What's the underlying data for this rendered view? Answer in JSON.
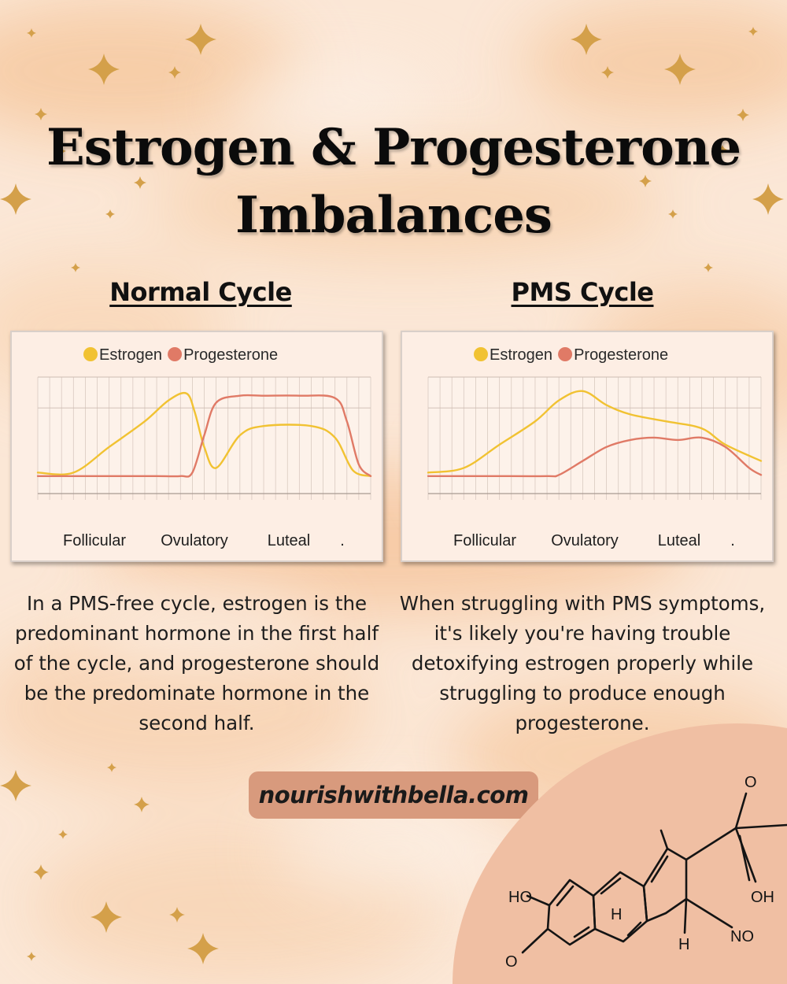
{
  "title_line1": "Estrogen & Progesterone",
  "title_line2": "Imbalances",
  "colors": {
    "background": "#fbe7d6",
    "estrogen": "#f1c232",
    "progesterone": "#e07a66",
    "sparkle": "#d4a04a",
    "accent_blob": "#f0bfa3",
    "site_badge": "#d89a7d"
  },
  "normal": {
    "heading": "Normal Cycle",
    "description": "In a PMS-free cycle, estrogen is the predominant hormone in the first half of the cycle, and progesterone should be the predominate hormone in the second half."
  },
  "pms": {
    "heading": "PMS Cycle",
    "description": "When struggling with PMS symptoms, it's likely you're having trouble detoxifying estrogen properly while struggling to produce enough progesterone."
  },
  "website": "nourishwithbella.com",
  "chemical_labels": [
    "O",
    "OH",
    "HO",
    "H",
    "H",
    "NO",
    "O"
  ],
  "chart_data": [
    {
      "type": "line",
      "legend": [
        "Estrogen",
        "Progesterone"
      ],
      "legend_placement": "top",
      "phase_labels": [
        "Follicular",
        "Ovulatory",
        "Luteal",
        "."
      ],
      "grid": true,
      "xlim": [
        0,
        28
      ],
      "ylim": [
        0,
        100
      ],
      "series": [
        {
          "name": "Estrogen",
          "color": "#f1c232",
          "x": [
            0,
            3,
            6,
            9,
            11,
            12.5,
            13.2,
            14,
            15,
            17,
            19,
            23,
            25,
            26.5,
            28
          ],
          "y": [
            18,
            18,
            40,
            62,
            80,
            86,
            70,
            40,
            22,
            50,
            58,
            58,
            48,
            20,
            15
          ]
        },
        {
          "name": "Progesterone",
          "color": "#e07a66",
          "x": [
            0,
            5,
            10,
            12,
            13,
            14,
            15,
            17,
            19,
            22,
            25,
            26,
            27,
            28
          ],
          "y": [
            15,
            15,
            15,
            15,
            18,
            50,
            78,
            84,
            84,
            84,
            82,
            62,
            25,
            15
          ]
        }
      ]
    },
    {
      "type": "line",
      "legend": [
        "Estrogen",
        "Progesterone"
      ],
      "legend_placement": "top",
      "phase_labels": [
        "Follicular",
        "Ovulatory",
        "Luteal",
        "."
      ],
      "grid": true,
      "xlim": [
        0,
        28
      ],
      "ylim": [
        0,
        100
      ],
      "series": [
        {
          "name": "Estrogen",
          "color": "#f1c232",
          "x": [
            0,
            3,
            6,
            9,
            11,
            13,
            15,
            17,
            20,
            23,
            25,
            28
          ],
          "y": [
            18,
            22,
            42,
            62,
            80,
            88,
            76,
            68,
            62,
            56,
            42,
            28
          ]
        },
        {
          "name": "Progesterone",
          "color": "#e07a66",
          "x": [
            0,
            5,
            10,
            11,
            13,
            15,
            17,
            19,
            21,
            23,
            25,
            27,
            28
          ],
          "y": [
            15,
            15,
            15,
            16,
            28,
            40,
            46,
            48,
            46,
            48,
            40,
            22,
            16
          ]
        }
      ]
    }
  ]
}
